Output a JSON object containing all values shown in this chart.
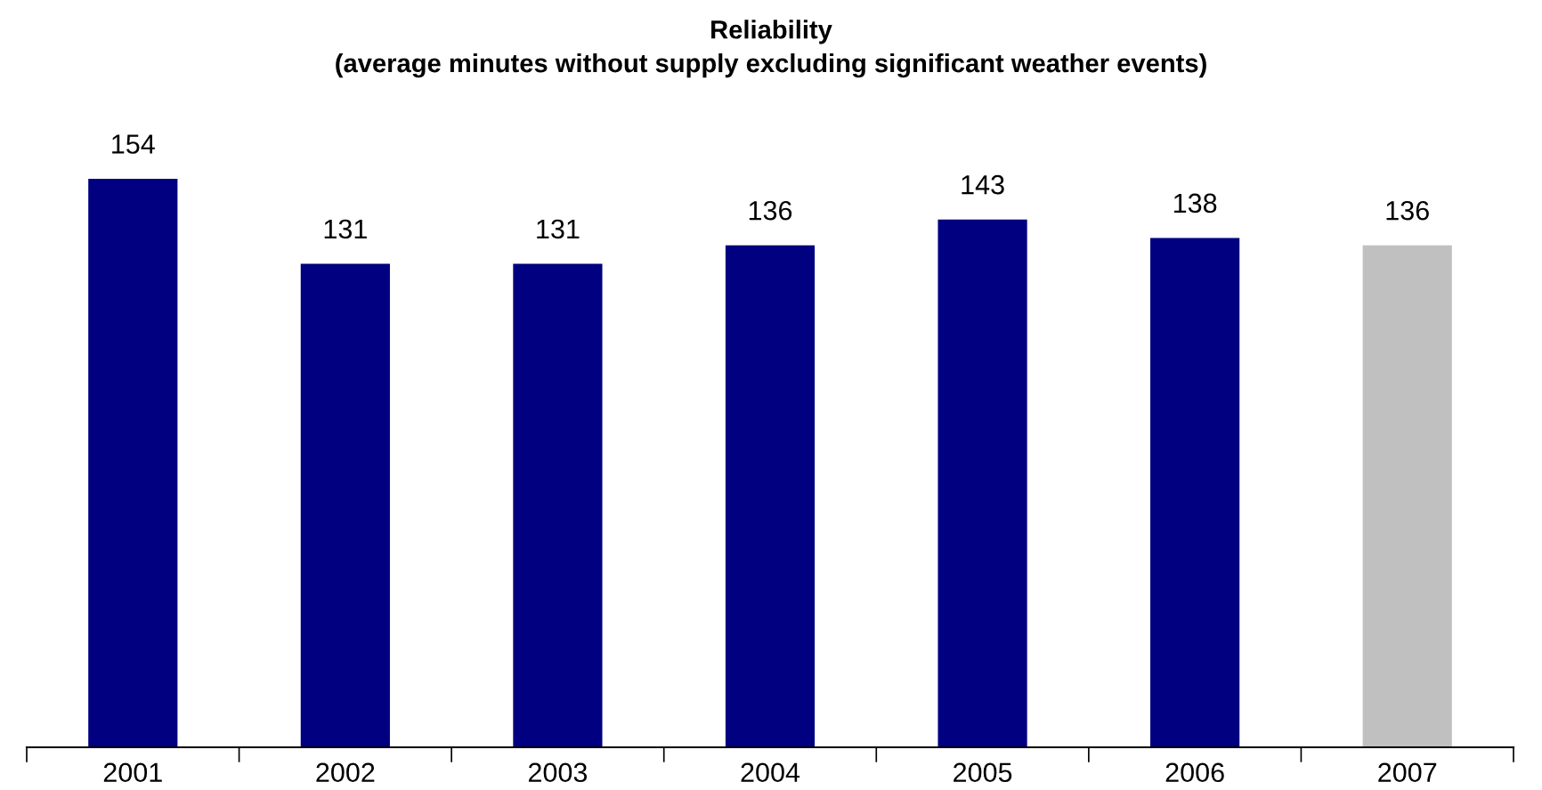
{
  "chart_data": {
    "type": "bar",
    "title": "Reliability\n(average minutes without supply excluding significant weather events)",
    "categories": [
      "2001",
      "2002",
      "2003",
      "2004",
      "2005",
      "2006",
      "2007"
    ],
    "values": [
      154,
      131,
      131,
      136,
      143,
      138,
      136
    ],
    "colors": [
      "#000080",
      "#000080",
      "#000080",
      "#000080",
      "#000080",
      "#000080",
      "#c0c0c0"
    ],
    "tick_labels": "x",
    "data_labels": true
  }
}
